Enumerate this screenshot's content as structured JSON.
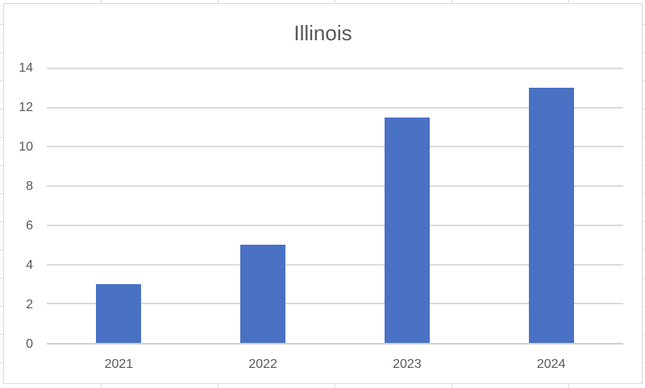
{
  "chart_data": {
    "type": "bar",
    "title": "Illinois",
    "categories": [
      "2021",
      "2022",
      "2023",
      "2024"
    ],
    "values": [
      3,
      5,
      11.5,
      13
    ],
    "xlabel": "",
    "ylabel": "",
    "ylim": [
      0,
      14
    ],
    "ytick_step": 2,
    "yticks": [
      0,
      2,
      4,
      6,
      8,
      10,
      12,
      14
    ],
    "grid": true,
    "legend": false,
    "bar_color": "#4A72C4",
    "gridline_color": "#DBDBDB",
    "axis_line_color": "#D2D0D0",
    "text_color": "#595959",
    "frame_color": "#D9D9D9"
  }
}
